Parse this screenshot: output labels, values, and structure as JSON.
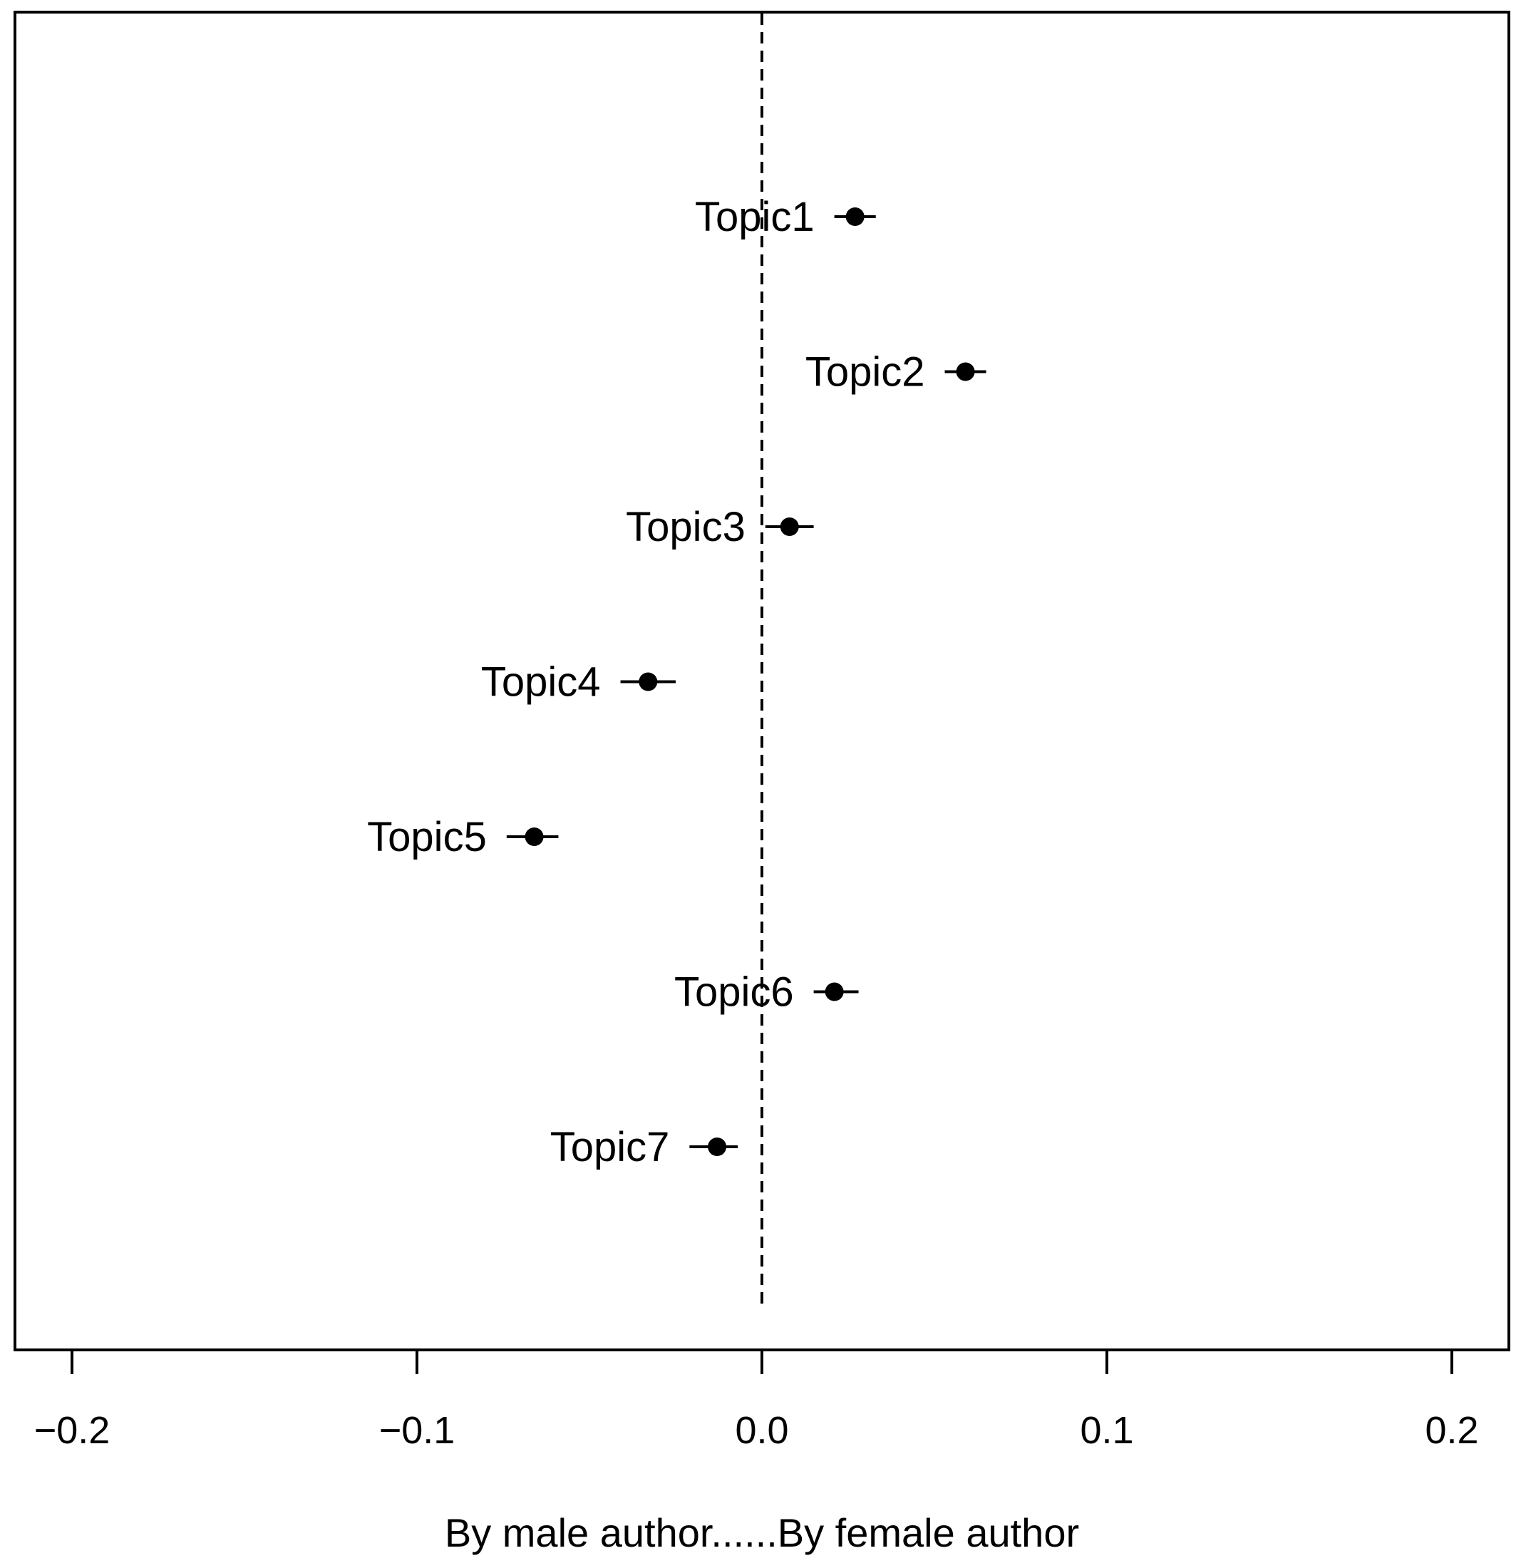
{
  "chart_data": {
    "type": "scatter",
    "title": "",
    "xlabel": "By male author......By female author",
    "ylabel": "",
    "xlim": [
      -0.2,
      0.2
    ],
    "x_ticks": [
      -0.2,
      -0.1,
      0.0,
      0.1,
      0.2
    ],
    "x_tick_labels": [
      "−0.2",
      "−0.1",
      "0.0",
      "0.1",
      "0.2"
    ],
    "reference_line": {
      "x": 0.0,
      "style": "dashed"
    },
    "grid": false,
    "legend": "none",
    "point_color": "#000000",
    "points": [
      {
        "label": "Topic1",
        "estimate": 0.027,
        "ci": [
          0.021,
          0.033
        ]
      },
      {
        "label": "Topic2",
        "estimate": 0.059,
        "ci": [
          0.053,
          0.065
        ]
      },
      {
        "label": "Topic3",
        "estimate": 0.008,
        "ci": [
          0.001,
          0.015
        ]
      },
      {
        "label": "Topic4",
        "estimate": -0.033,
        "ci": [
          -0.041,
          -0.025
        ]
      },
      {
        "label": "Topic5",
        "estimate": -0.066,
        "ci": [
          -0.074,
          -0.059
        ]
      },
      {
        "label": "Topic6",
        "estimate": 0.021,
        "ci": [
          0.015,
          0.028
        ]
      },
      {
        "label": "Topic7",
        "estimate": -0.013,
        "ci": [
          -0.021,
          -0.007
        ]
      }
    ]
  }
}
